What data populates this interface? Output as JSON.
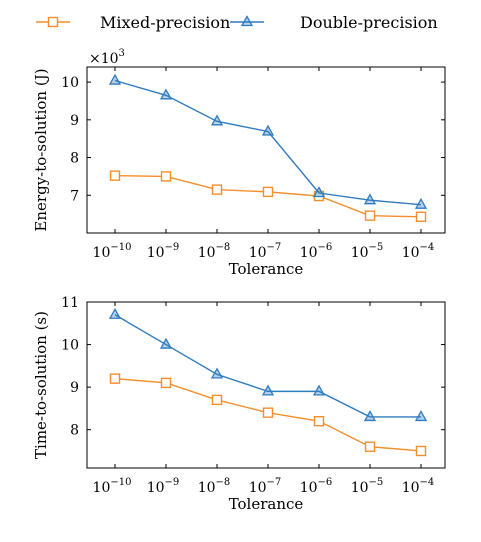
{
  "legend": {
    "placement": "top-center",
    "entries": [
      {
        "label": "Mixed-precision",
        "color": "#f28e2b",
        "marker": "square"
      },
      {
        "label": "Double-precision",
        "color": "#2f7bbf",
        "marker": "triangle"
      }
    ]
  },
  "chart_data": [
    {
      "type": "line",
      "xlabel": "Tolerance",
      "ylabel": "Energy-to-solution (J)",
      "scale_note_base": "×10",
      "scale_note_exp": "3",
      "categories": [
        "-10",
        "-9",
        "-8",
        "-7",
        "-6",
        "-5",
        "-4"
      ],
      "category_base": "10",
      "ylim": [
        6.0,
        10.4
      ],
      "yticks": [
        7,
        8,
        9,
        10
      ],
      "grid": false,
      "series": [
        {
          "name": "Mixed-precision",
          "color": "#f28e2b",
          "marker": "square",
          "values": [
            7.52,
            7.5,
            7.15,
            7.09,
            6.98,
            6.46,
            6.43
          ]
        },
        {
          "name": "Double-precision",
          "color": "#2f7bbf",
          "marker": "triangle",
          "values": [
            10.04,
            9.65,
            8.96,
            8.69,
            7.06,
            6.87,
            6.75
          ]
        }
      ]
    },
    {
      "type": "line",
      "xlabel": "Tolerance",
      "ylabel": "Time-to-solution (s)",
      "categories": [
        "-10",
        "-9",
        "-8",
        "-7",
        "-6",
        "-5",
        "-4"
      ],
      "category_base": "10",
      "ylim": [
        7.1,
        11.0
      ],
      "yticks": [
        8,
        9,
        10,
        11
      ],
      "grid": false,
      "series": [
        {
          "name": "Mixed-precision",
          "color": "#f28e2b",
          "marker": "square",
          "values": [
            9.2,
            9.1,
            8.7,
            8.4,
            8.2,
            7.6,
            7.5
          ]
        },
        {
          "name": "Double-precision",
          "color": "#2f7bbf",
          "marker": "triangle",
          "values": [
            10.7,
            10.0,
            9.3,
            8.9,
            8.9,
            8.3,
            8.3
          ]
        }
      ]
    }
  ]
}
